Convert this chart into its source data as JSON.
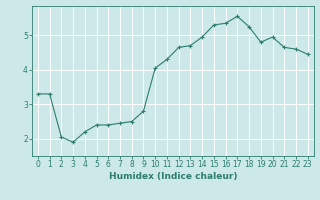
{
  "x": [
    0,
    1,
    2,
    3,
    4,
    5,
    6,
    7,
    8,
    9,
    10,
    11,
    12,
    13,
    14,
    15,
    16,
    17,
    18,
    19,
    20,
    21,
    22,
    23
  ],
  "y": [
    3.3,
    3.3,
    2.05,
    1.9,
    2.2,
    2.4,
    2.4,
    2.45,
    2.5,
    2.8,
    4.05,
    4.3,
    4.65,
    4.7,
    4.95,
    5.3,
    5.35,
    5.55,
    5.25,
    4.8,
    4.95,
    4.65,
    4.6,
    4.45
  ],
  "line_color": "#2d7d6e",
  "marker": "+",
  "marker_color": "#2d7d6e",
  "bg_color": "#cce8e8",
  "grid_color": "#ffffff",
  "xlabel": "Humidex (Indice chaleur)",
  "ylabel": "",
  "title": "",
  "yticks": [
    2,
    3,
    4,
    5
  ],
  "ylim": [
    1.5,
    5.85
  ],
  "xlim": [
    -0.5,
    23.5
  ],
  "xticks": [
    0,
    1,
    2,
    3,
    4,
    5,
    6,
    7,
    8,
    9,
    10,
    11,
    12,
    13,
    14,
    15,
    16,
    17,
    18,
    19,
    20,
    21,
    22,
    23
  ],
  "xlabel_fontsize": 6.5,
  "tick_fontsize": 5.5,
  "axis_color": "#2d7d6e",
  "linewidth": 0.8,
  "markersize": 3
}
